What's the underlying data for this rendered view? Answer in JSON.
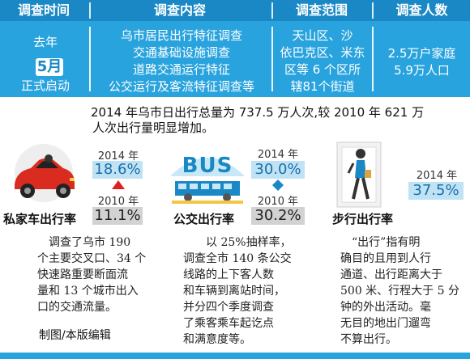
{
  "header": {
    "col1": "调查时间",
    "col2": "调查内容",
    "col3": "调查范围",
    "col4": "调查人数"
  },
  "band": {
    "time_line1": "去年",
    "time_month": "5月",
    "time_line3": "正式启动",
    "content": [
      "乌市居民出行特征调查",
      "交通基础设施调查",
      "道路交通运行特征",
      "公交运行及客流特征调查等"
    ],
    "scope": [
      "天山区、沙",
      "依巴克区、米东",
      "区等 6 个区所",
      "辖81个街道"
    ],
    "people": [
      "2.5万户家庭",
      "5.9万人口"
    ]
  },
  "summary": [
    "2014 年乌市日出行总量为 737.5 万人次,较 2010 年 621 万",
    "人次出行量明显增加。"
  ],
  "stats": {
    "car": {
      "year_a": "2014 年",
      "value_a": "18.6%",
      "year_b": "2010 年",
      "value_b": "11.1%",
      "label": "私家车出行率"
    },
    "bus": {
      "year_a": "2014 年",
      "value_a": "30.0%",
      "year_b": "2010 年",
      "value_b": "30.2%",
      "label": "公交出行率",
      "icon_text": "BUS"
    },
    "walk": {
      "year_a": "2014 年",
      "value_a": "37.5%",
      "label": "步行出行率"
    }
  },
  "desc": {
    "col1": [
      "调查了乌市 190",
      "个主要交叉口、34 个",
      "快速路重要断面流",
      "量和 13 个城市出入",
      "口的交通流量。"
    ],
    "col2": [
      "以 25%抽样率，",
      "调查全市 140 条公交",
      "线路的上下客人数",
      "和车辆到离站时间，",
      "并分四个季度调查",
      "了乘客乘车起讫点",
      "和满意度等。"
    ],
    "col3": [
      "“出行”指有明",
      "确目的且用到人行",
      "通道、出行距离大于",
      "500 米、行程大于 5 分",
      "钟的外出活动。毫",
      "无目的地出门遛弯",
      "不算出行。"
    ]
  },
  "credit": "制图/本版编辑",
  "colors": {
    "header": "#1a88c5",
    "band": "#29a3de",
    "accent_red": "#e02020",
    "accent_blue": "#1a88c5"
  }
}
